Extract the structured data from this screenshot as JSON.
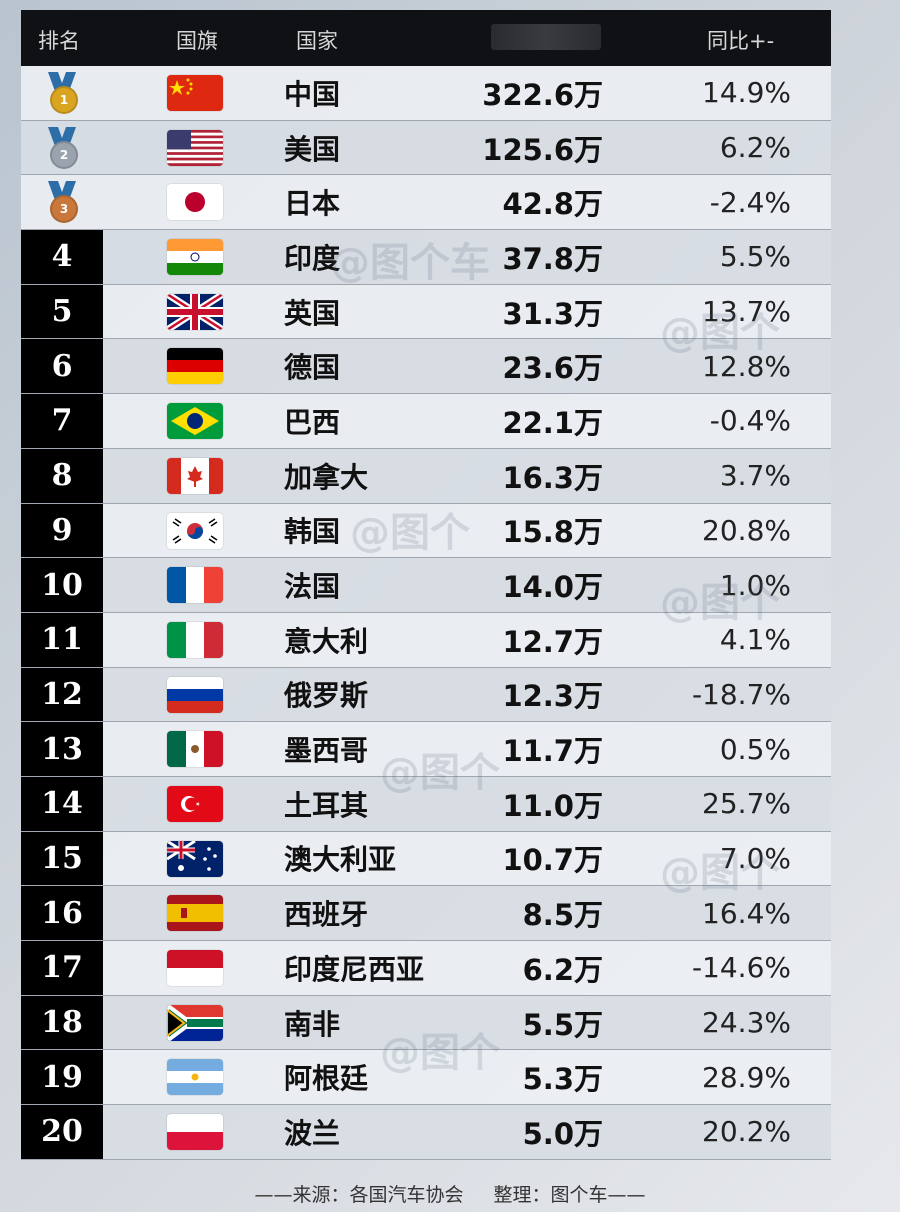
{
  "header": {
    "rank": "排名",
    "flag": "国旗",
    "country": "国家",
    "yoy": "同比+-"
  },
  "rows": [
    {
      "rank": "1",
      "country": "中国",
      "value": "322.6万",
      "yoy": "14.9%",
      "flag": "cn"
    },
    {
      "rank": "2",
      "country": "美国",
      "value": "125.6万",
      "yoy": "6.2%",
      "flag": "us"
    },
    {
      "rank": "3",
      "country": "日本",
      "value": "42.8万",
      "yoy": "-2.4%",
      "flag": "jp"
    },
    {
      "rank": "4",
      "country": "印度",
      "value": "37.8万",
      "yoy": "5.5%",
      "flag": "in"
    },
    {
      "rank": "5",
      "country": "英国",
      "value": "31.3万",
      "yoy": "13.7%",
      "flag": "gb"
    },
    {
      "rank": "6",
      "country": "德国",
      "value": "23.6万",
      "yoy": "12.8%",
      "flag": "de"
    },
    {
      "rank": "7",
      "country": "巴西",
      "value": "22.1万",
      "yoy": "-0.4%",
      "flag": "br"
    },
    {
      "rank": "8",
      "country": "加拿大",
      "value": "16.3万",
      "yoy": "3.7%",
      "flag": "ca"
    },
    {
      "rank": "9",
      "country": "韩国",
      "value": "15.8万",
      "yoy": "20.8%",
      "flag": "kr"
    },
    {
      "rank": "10",
      "country": "法国",
      "value": "14.0万",
      "yoy": "1.0%",
      "flag": "fr"
    },
    {
      "rank": "11",
      "country": "意大利",
      "value": "12.7万",
      "yoy": "4.1%",
      "flag": "it"
    },
    {
      "rank": "12",
      "country": "俄罗斯",
      "value": "12.3万",
      "yoy": "-18.7%",
      "flag": "ru"
    },
    {
      "rank": "13",
      "country": "墨西哥",
      "value": "11.7万",
      "yoy": "0.5%",
      "flag": "mx"
    },
    {
      "rank": "14",
      "country": "土耳其",
      "value": "11.0万",
      "yoy": "25.7%",
      "flag": "tr"
    },
    {
      "rank": "15",
      "country": "澳大利亚",
      "value": "10.7万",
      "yoy": "7.0%",
      "flag": "au"
    },
    {
      "rank": "16",
      "country": "西班牙",
      "value": "8.5万",
      "yoy": "16.4%",
      "flag": "es"
    },
    {
      "rank": "17",
      "country": "印度尼西亚",
      "value": "6.2万",
      "yoy": "-14.6%",
      "flag": "id"
    },
    {
      "rank": "18",
      "country": "南非",
      "value": "5.5万",
      "yoy": "24.3%",
      "flag": "za"
    },
    {
      "rank": "19",
      "country": "阿根廷",
      "value": "5.3万",
      "yoy": "28.9%",
      "flag": "ar"
    },
    {
      "rank": "20",
      "country": "波兰",
      "value": "5.0万",
      "yoy": "20.2%",
      "flag": "pl"
    }
  ],
  "medals": {
    "1": "#d9a520",
    "2": "#9aa3ad",
    "3": "#c9773a"
  },
  "footer": {
    "source": "——来源：各国汽车协会",
    "editor": "整理：图个车——"
  }
}
